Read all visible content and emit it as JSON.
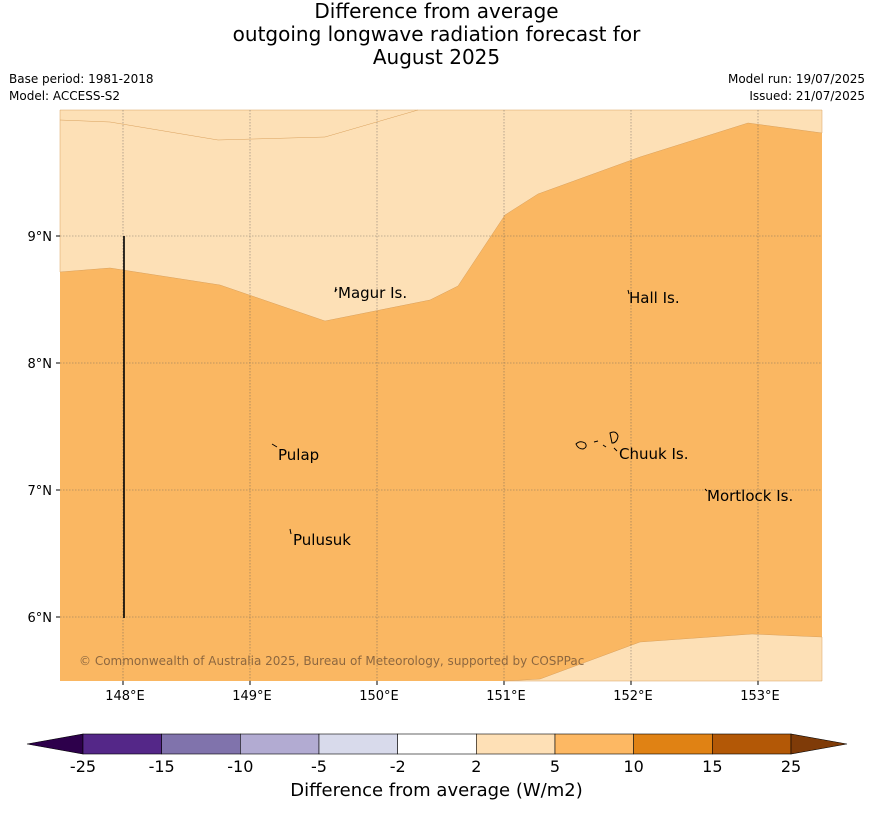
{
  "title": {
    "line1": "Difference from average",
    "line2": "outgoing longwave radiation forecast for",
    "line3": "August 2025"
  },
  "meta": {
    "base_period": "Base period: 1981-2018",
    "model": "Model: ACCESS-S2",
    "model_run": "Model run: 19/07/2025",
    "issued": "Issued: 21/07/2025"
  },
  "map": {
    "lon_ticks": [
      "148°E",
      "149°E",
      "150°E",
      "151°E",
      "152°E",
      "153°E"
    ],
    "lat_ticks": [
      "9°N",
      "8°N",
      "7°N",
      "6°N"
    ],
    "places": [
      {
        "name": "Magur Is."
      },
      {
        "name": "Hall Is."
      },
      {
        "name": "Pulap"
      },
      {
        "name": "Chuuk Is."
      },
      {
        "name": "Mortlock Is."
      },
      {
        "name": "Pulusuk"
      }
    ],
    "copyright": "© Commonwealth of Australia 2025, Bureau of Meteorology, supported by COSPPac",
    "regions": [
      {
        "class": "2 to 5",
        "color": "#fde0b6"
      },
      {
        "class": "5 to 10",
        "color": "#fab762"
      }
    ]
  },
  "colorbar": {
    "label": "Difference from average (W/m2)",
    "ticks": [
      "-25",
      "-15",
      "-10",
      "-5",
      "-2",
      "2",
      "5",
      "10",
      "15",
      "25"
    ],
    "colors": [
      "#2d004b",
      "#542788",
      "#8073ac",
      "#b2abd2",
      "#d8daeb",
      "#ffffff",
      "#fee0b6",
      "#fdb863",
      "#e08214",
      "#b35806",
      "#7f3b08"
    ]
  }
}
